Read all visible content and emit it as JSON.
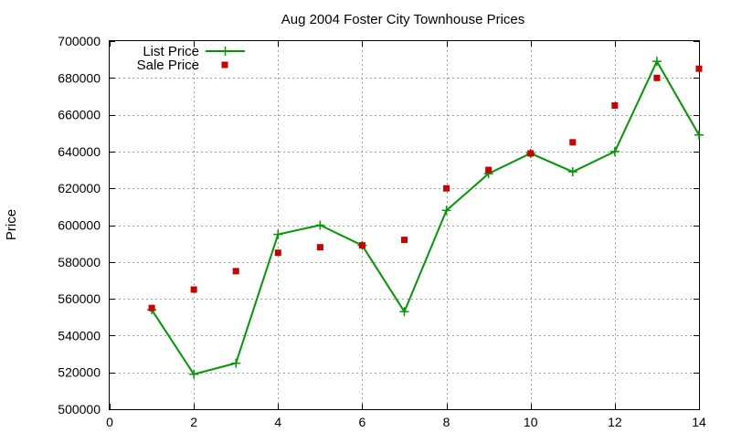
{
  "chart_data": {
    "type": "line",
    "title": "Aug 2004 Foster City Townhouse Prices",
    "xlabel": "",
    "ylabel": "Price",
    "xlim": [
      0,
      14
    ],
    "ylim": [
      500000,
      700000
    ],
    "x_ticks": [
      0,
      2,
      4,
      6,
      8,
      10,
      12,
      14
    ],
    "y_ticks": [
      500000,
      520000,
      540000,
      560000,
      580000,
      600000,
      620000,
      640000,
      660000,
      680000,
      700000
    ],
    "grid": true,
    "legend_position": "top-left",
    "series": [
      {
        "name": "List Price",
        "style": "line-with-plus-markers",
        "color": "#009900",
        "x": [
          1,
          2,
          3,
          4,
          5,
          6,
          7,
          8,
          9,
          10,
          11,
          12,
          13,
          14
        ],
        "y": [
          554000,
          519000,
          525000,
          595000,
          600000,
          589000,
          553000,
          608000,
          628000,
          639000,
          629000,
          640000,
          689000,
          649000
        ]
      },
      {
        "name": "Sale Price",
        "style": "square-points",
        "color": "#cc0000",
        "x": [
          1,
          2,
          3,
          4,
          5,
          6,
          7,
          8,
          9,
          10,
          11,
          12,
          13,
          14
        ],
        "y": [
          555000,
          565000,
          575000,
          585000,
          588000,
          589000,
          592000,
          620000,
          630000,
          639000,
          645000,
          665000,
          680000,
          685000
        ]
      }
    ]
  }
}
